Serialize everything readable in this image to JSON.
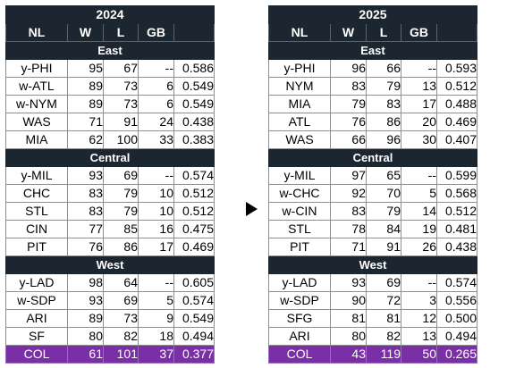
{
  "tables": [
    {
      "year": "2024",
      "headers": {
        "team": "NL",
        "w": "W",
        "l": "L",
        "gb": "GB",
        "pct": ""
      },
      "divisions": [
        {
          "name": "East",
          "teams": [
            {
              "team": "y-PHI",
              "w": "95",
              "l": "67",
              "gb": "--",
              "pct": "0.586"
            },
            {
              "team": "w-ATL",
              "w": "89",
              "l": "73",
              "gb": "6",
              "pct": "0.549"
            },
            {
              "team": "w-NYM",
              "w": "89",
              "l": "73",
              "gb": "6",
              "pct": "0.549"
            },
            {
              "team": "WAS",
              "w": "71",
              "l": "91",
              "gb": "24",
              "pct": "0.438"
            },
            {
              "team": "MIA",
              "w": "62",
              "l": "100",
              "gb": "33",
              "pct": "0.383"
            }
          ]
        },
        {
          "name": "Central",
          "teams": [
            {
              "team": "y-MIL",
              "w": "93",
              "l": "69",
              "gb": "--",
              "pct": "0.574"
            },
            {
              "team": "CHC",
              "w": "83",
              "l": "79",
              "gb": "10",
              "pct": "0.512"
            },
            {
              "team": "STL",
              "w": "83",
              "l": "79",
              "gb": "10",
              "pct": "0.512"
            },
            {
              "team": "CIN",
              "w": "77",
              "l": "85",
              "gb": "16",
              "pct": "0.475"
            },
            {
              "team": "PIT",
              "w": "76",
              "l": "86",
              "gb": "17",
              "pct": "0.469"
            }
          ]
        },
        {
          "name": "West",
          "teams": [
            {
              "team": "y-LAD",
              "w": "98",
              "l": "64",
              "gb": "--",
              "pct": "0.605"
            },
            {
              "team": "w-SDP",
              "w": "93",
              "l": "69",
              "gb": "5",
              "pct": "0.574"
            },
            {
              "team": "ARI",
              "w": "89",
              "l": "73",
              "gb": "9",
              "pct": "0.549"
            },
            {
              "team": "SF",
              "w": "80",
              "l": "82",
              "gb": "18",
              "pct": "0.494"
            },
            {
              "team": "COL",
              "w": "61",
              "l": "101",
              "gb": "37",
              "pct": "0.377",
              "highlight": true
            }
          ]
        }
      ]
    },
    {
      "year": "2025",
      "headers": {
        "team": "NL",
        "w": "W",
        "l": "L",
        "gb": "GB",
        "pct": ""
      },
      "divisions": [
        {
          "name": "East",
          "teams": [
            {
              "team": "y-PHI",
              "w": "96",
              "l": "66",
              "gb": "--",
              "pct": "0.593"
            },
            {
              "team": "NYM",
              "w": "83",
              "l": "79",
              "gb": "13",
              "pct": "0.512"
            },
            {
              "team": "MIA",
              "w": "79",
              "l": "83",
              "gb": "17",
              "pct": "0.488"
            },
            {
              "team": "ATL",
              "w": "76",
              "l": "86",
              "gb": "20",
              "pct": "0.469"
            },
            {
              "team": "WAS",
              "w": "66",
              "l": "96",
              "gb": "30",
              "pct": "0.407"
            }
          ]
        },
        {
          "name": "Central",
          "teams": [
            {
              "team": "y-MIL",
              "w": "97",
              "l": "65",
              "gb": "--",
              "pct": "0.599"
            },
            {
              "team": "w-CHC",
              "w": "92",
              "l": "70",
              "gb": "5",
              "pct": "0.568"
            },
            {
              "team": "w-CIN",
              "w": "83",
              "l": "79",
              "gb": "14",
              "pct": "0.512"
            },
            {
              "team": "STL",
              "w": "78",
              "l": "84",
              "gb": "19",
              "pct": "0.481"
            },
            {
              "team": "PIT",
              "w": "71",
              "l": "91",
              "gb": "26",
              "pct": "0.438"
            }
          ]
        },
        {
          "name": "West",
          "teams": [
            {
              "team": "y-LAD",
              "w": "93",
              "l": "69",
              "gb": "--",
              "pct": "0.574"
            },
            {
              "team": "w-SDP",
              "w": "90",
              "l": "72",
              "gb": "3",
              "pct": "0.556"
            },
            {
              "team": "SFG",
              "w": "81",
              "l": "81",
              "gb": "12",
              "pct": "0.500"
            },
            {
              "team": "ARI",
              "w": "80",
              "l": "82",
              "gb": "13",
              "pct": "0.494"
            },
            {
              "team": "COL",
              "w": "43",
              "l": "119",
              "gb": "50",
              "pct": "0.265",
              "highlight": true
            }
          ]
        }
      ]
    }
  ],
  "colors": {
    "header": "#1c2630",
    "highlight": "#7b2fa6"
  },
  "icons": {
    "between": "arrow-right-icon"
  }
}
